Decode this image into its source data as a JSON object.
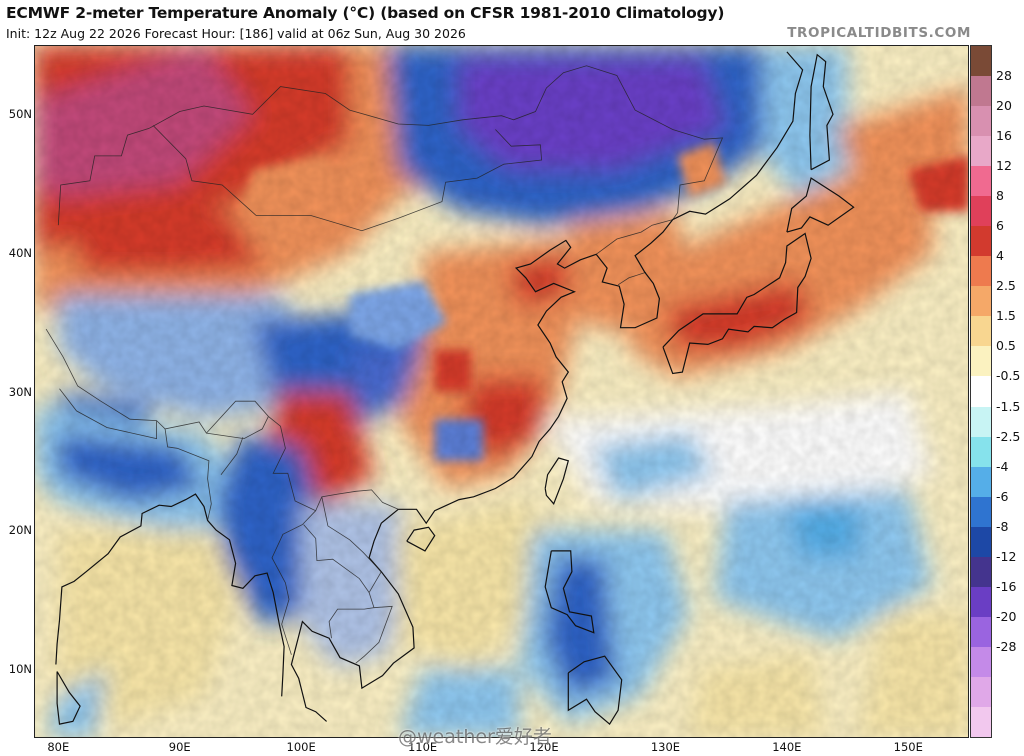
{
  "header": {
    "title": "ECMWF 2-meter Temperature Anomaly (°C) (based on CFSR 1981-2010 Climatology)",
    "subtitle": "Init: 12z Aug 22 2026   Forecast Hour: [186]   valid at 06z Sun, Aug 30 2026",
    "brand": "TROPICALTIDBITS.COM"
  },
  "map": {
    "region": "East Asia",
    "lon_range": [
      78,
      155
    ],
    "lat_range": [
      5,
      55
    ],
    "lat_labels": [
      "50N",
      "40N",
      "30N",
      "20N",
      "10N"
    ],
    "lon_labels": [
      "80E",
      "90E",
      "100E",
      "110E",
      "120E",
      "130E",
      "140E",
      "150E"
    ],
    "colors": {
      "strong_cold": "#6a3fc8",
      "cold": "#2f64c8",
      "cool": "#8ec8f0",
      "neutral": "#ffffff",
      "mild_warm": "#f8e6a8",
      "warm": "#f2925a",
      "hot": "#d63a2c",
      "very_hot": "#c2487a"
    }
  },
  "colorbar": {
    "labels": [
      "28",
      "20",
      "16",
      "12",
      "8",
      "6",
      "4",
      "2.5",
      "1.5",
      "0.5",
      "-0.5",
      "-1.5",
      "-2.5",
      "-4",
      "-6",
      "-8",
      "-12",
      "-16",
      "-20",
      "-28"
    ],
    "colors": [
      "#7a4a36",
      "#c07890",
      "#d890b0",
      "#e8a8c8",
      "#f06a90",
      "#e0405a",
      "#d23a2e",
      "#ee7a4e",
      "#f5a868",
      "#f8d690",
      "#fbf2c0",
      "#ffffff",
      "#c8f4f4",
      "#86e2ec",
      "#55aee8",
      "#2f74d0",
      "#1d48a6",
      "#44348e",
      "#6a3ec4",
      "#9a64e0",
      "#c48ae8",
      "#e0a8e8",
      "#f2c8ee"
    ]
  },
  "watermark": "@weather爱好者"
}
